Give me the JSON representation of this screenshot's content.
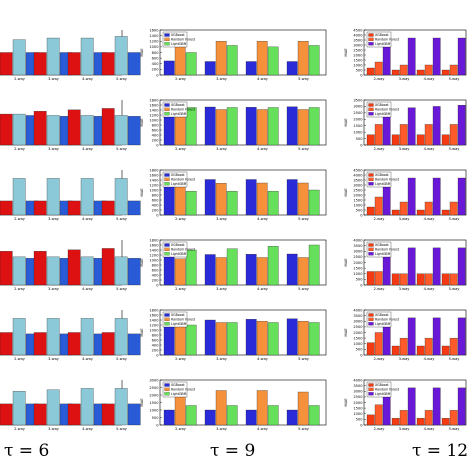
{
  "colors": {
    "a": {
      "red": "#dd1111",
      "lightblue": "#8cc9d8",
      "blue": "#2a5bd7"
    },
    "b": {
      "blue": "#2a2ad8",
      "orange": "#f5913a",
      "green": "#66e05a"
    },
    "c": {
      "red": "#f33a12",
      "purple": "#6a18d8"
    }
  },
  "series_names": {
    "b": [
      "XGBoost",
      "Random Forest",
      "LightGBM"
    ],
    "c": [
      "XGBoost",
      "Random Forest",
      "LightGBM"
    ]
  },
  "categories": [
    "2-way",
    "3-way",
    "4-way",
    "5-way"
  ],
  "ylabel": "MAE",
  "footer": {
    "tau_a": "τ = 6",
    "tau_b": "τ = 9",
    "tau_c": "τ = 12"
  },
  "chart_data": [
    {
      "type": "bar",
      "panel": "A1",
      "categories": [
        "2-way",
        "3-way",
        "4-way",
        "5-way"
      ],
      "ylim": [
        0,
        14
      ],
      "series": [
        {
          "values": [
            7,
            7,
            7,
            7
          ]
        },
        {
          "values": [
            11,
            11.5,
            11.5,
            12
          ]
        },
        {
          "values": [
            7,
            7,
            7,
            7
          ]
        }
      ]
    },
    {
      "type": "bar",
      "panel": "B1",
      "categories": [
        "2-way",
        "3-way",
        "4-way",
        "5-way"
      ],
      "ylim": [
        0,
        1600
      ],
      "yticks": [
        0,
        200,
        400,
        600,
        800,
        1000,
        1200,
        1400,
        1600
      ],
      "series": [
        {
          "name": "XGBoost",
          "values": [
            500,
            480,
            480,
            480
          ]
        },
        {
          "name": "Random Forest",
          "values": [
            1000,
            1200,
            1200,
            1200
          ]
        },
        {
          "name": "LightGBM",
          "values": [
            800,
            1050,
            1000,
            1050
          ]
        }
      ]
    },
    {
      "type": "bar",
      "panel": "C1",
      "categories": [
        "2-way",
        "3-way",
        "4-way",
        "5-way"
      ],
      "ylim": [
        0,
        4500
      ],
      "yticks": [
        0,
        500,
        1000,
        1500,
        2000,
        2500,
        3000,
        3500,
        4000,
        4500
      ],
      "series": [
        {
          "name": "XGBoost",
          "values": [
            700,
            500,
            500,
            500
          ]
        },
        {
          "name": "Random Forest",
          "values": [
            1300,
            1000,
            1000,
            1000
          ]
        },
        {
          "name": "LightGBM",
          "values": [
            3700,
            3700,
            3700,
            3700
          ]
        }
      ]
    },
    {
      "type": "bar",
      "panel": "A2",
      "categories": [
        "2-way",
        "3-way",
        "4-way",
        "5-way"
      ],
      "ylim": [
        0,
        16
      ],
      "series": [
        {
          "values": [
            11,
            12,
            12.5,
            13
          ]
        },
        {
          "values": [
            11,
            10.5,
            10.5,
            10.5
          ]
        },
        {
          "values": [
            10.5,
            10.2,
            10.2,
            10.2
          ]
        }
      ]
    },
    {
      "type": "bar",
      "panel": "B2",
      "categories": [
        "2-way",
        "3-way",
        "4-way",
        "5-way"
      ],
      "ylim": [
        0,
        1800
      ],
      "yticks": [
        0,
        200,
        400,
        600,
        800,
        1000,
        1200,
        1400,
        1600,
        1800
      ],
      "series": [
        {
          "name": "XGBoost",
          "values": [
            1500,
            1520,
            1510,
            1530
          ]
        },
        {
          "name": "Random Forest",
          "values": [
            1420,
            1420,
            1420,
            1420
          ]
        },
        {
          "name": "LightGBM",
          "values": [
            1500,
            1500,
            1500,
            1500
          ]
        }
      ]
    },
    {
      "type": "bar",
      "panel": "C2",
      "categories": [
        "2-way",
        "3-way",
        "4-way",
        "5-way"
      ],
      "ylim": [
        0,
        3500
      ],
      "yticks": [
        0,
        500,
        1000,
        1500,
        2000,
        2500,
        3000,
        3500
      ],
      "series": [
        {
          "name": "XGBoost",
          "values": [
            800,
            800,
            800,
            800
          ]
        },
        {
          "name": "Random Forest",
          "values": [
            1600,
            1600,
            1600,
            1600
          ]
        },
        {
          "name": "LightGBM",
          "values": [
            2800,
            2900,
            3000,
            3100
          ]
        }
      ]
    },
    {
      "type": "bar",
      "panel": "A3",
      "categories": [
        "2-way",
        "3-way",
        "4-way",
        "5-way"
      ],
      "ylim": [
        0,
        16
      ],
      "series": [
        {
          "values": [
            5,
            5,
            5,
            5
          ]
        },
        {
          "values": [
            13,
            13,
            13,
            13
          ]
        },
        {
          "values": [
            5,
            5,
            5,
            5
          ]
        }
      ]
    },
    {
      "type": "bar",
      "panel": "B3",
      "categories": [
        "2-way",
        "3-way",
        "4-way",
        "5-way"
      ],
      "ylim": [
        0,
        1800
      ],
      "yticks": [
        0,
        200,
        400,
        600,
        800,
        1000,
        1200,
        1400,
        1600,
        1800
      ],
      "series": [
        {
          "name": "XGBoost",
          "values": [
            1350,
            1420,
            1420,
            1420
          ]
        },
        {
          "name": "Random Forest",
          "values": [
            1270,
            1270,
            1280,
            1280
          ]
        },
        {
          "name": "LightGBM",
          "values": [
            950,
            950,
            950,
            1000
          ]
        }
      ]
    },
    {
      "type": "bar",
      "panel": "C3",
      "categories": [
        "2-way",
        "3-way",
        "4-way",
        "5-way"
      ],
      "ylim": [
        0,
        4500
      ],
      "yticks": [
        0,
        500,
        1000,
        1500,
        2000,
        2500,
        3000,
        3500,
        4000,
        4500
      ],
      "series": [
        {
          "name": "XGBoost",
          "values": [
            800,
            500,
            500,
            500
          ]
        },
        {
          "name": "Random Forest",
          "values": [
            1800,
            1300,
            1300,
            1300
          ]
        },
        {
          "name": "LightGBM",
          "values": [
            3700,
            3700,
            3700,
            3700
          ]
        }
      ]
    },
    {
      "type": "bar",
      "panel": "A4",
      "categories": [
        "2-way",
        "3-way",
        "4-way",
        "5-way"
      ],
      "ylim": [
        0,
        16
      ],
      "series": [
        {
          "values": [
            12,
            12,
            12.5,
            13
          ]
        },
        {
          "values": [
            10,
            10,
            10,
            10
          ]
        },
        {
          "values": [
            9.5,
            9.5,
            9.5,
            9.5
          ]
        }
      ]
    },
    {
      "type": "bar",
      "panel": "B4",
      "categories": [
        "2-way",
        "3-way",
        "4-way",
        "5-way"
      ],
      "ylim": [
        0,
        1800
      ],
      "yticks": [
        0,
        200,
        400,
        600,
        800,
        1000,
        1200,
        1400,
        1600,
        1800
      ],
      "series": [
        {
          "name": "XGBoost",
          "values": [
            1200,
            1220,
            1230,
            1240
          ]
        },
        {
          "name": "Random Forest",
          "values": [
            1050,
            1100,
            1100,
            1100
          ]
        },
        {
          "name": "LightGBM",
          "values": [
            1400,
            1450,
            1550,
            1600
          ]
        }
      ]
    },
    {
      "type": "bar",
      "panel": "C4",
      "categories": [
        "2-way",
        "3-way",
        "4-way",
        "5-way"
      ],
      "ylim": [
        0,
        4000
      ],
      "yticks": [
        0,
        500,
        1000,
        1500,
        2000,
        2500,
        3000,
        3500,
        4000
      ],
      "series": [
        {
          "name": "XGBoost",
          "values": [
            1200,
            1000,
            1000,
            1000
          ]
        },
        {
          "name": "Random Forest",
          "values": [
            1200,
            1000,
            1000,
            1000
          ]
        },
        {
          "name": "LightGBM",
          "values": [
            2900,
            3300,
            3300,
            3300
          ]
        }
      ]
    },
    {
      "type": "bar",
      "panel": "A5",
      "categories": [
        "2-way",
        "3-way",
        "4-way",
        "5-way"
      ],
      "ylim": [
        0,
        16
      ],
      "series": [
        {
          "values": [
            8,
            8,
            8,
            8
          ]
        },
        {
          "values": [
            13,
            13,
            13,
            13
          ]
        },
        {
          "values": [
            7.5,
            7.5,
            7.5,
            7.5
          ]
        }
      ]
    },
    {
      "type": "bar",
      "panel": "B5",
      "categories": [
        "2-way",
        "3-way",
        "4-way",
        "5-way"
      ],
      "ylim": [
        0,
        1800
      ],
      "yticks": [
        0,
        200,
        400,
        600,
        800,
        1000,
        1200,
        1400,
        1600,
        1800
      ],
      "series": [
        {
          "name": "XGBoost",
          "values": [
            1350,
            1400,
            1430,
            1450
          ]
        },
        {
          "name": "Random Forest",
          "values": [
            1250,
            1300,
            1350,
            1350
          ]
        },
        {
          "name": "LightGBM",
          "values": [
            1200,
            1300,
            1300,
            1300
          ]
        }
      ]
    },
    {
      "type": "bar",
      "panel": "C5",
      "categories": [
        "2-way",
        "3-way",
        "4-way",
        "5-way"
      ],
      "ylim": [
        0,
        4000
      ],
      "yticks": [
        0,
        500,
        1000,
        1500,
        2000,
        2500,
        3000,
        3500,
        4000
      ],
      "series": [
        {
          "name": "XGBoost",
          "values": [
            1100,
            800,
            800,
            800
          ]
        },
        {
          "name": "Random Forest",
          "values": [
            2000,
            1500,
            1500,
            1500
          ]
        },
        {
          "name": "LightGBM",
          "values": [
            3500,
            3300,
            3300,
            3300
          ]
        }
      ]
    },
    {
      "type": "bar",
      "panel": "A6",
      "categories": [
        "2-way",
        "3-way",
        "4-way",
        "5-way"
      ],
      "ylim": [
        0,
        16
      ],
      "series": [
        {
          "values": [
            7.5,
            7.5,
            7.5,
            7.5
          ]
        },
        {
          "values": [
            12,
            12.5,
            13,
            13
          ]
        },
        {
          "values": [
            7.5,
            7.5,
            7.5,
            7.5
          ]
        }
      ]
    },
    {
      "type": "bar",
      "panel": "B6",
      "categories": [
        "2-way",
        "3-way",
        "4-way",
        "5-way"
      ],
      "ylim": [
        0,
        3000
      ],
      "yticks": [
        0,
        500,
        1000,
        1500,
        2000,
        2500,
        3000
      ],
      "series": [
        {
          "name": "XGBoost",
          "values": [
            1000,
            1000,
            1000,
            1000
          ]
        },
        {
          "name": "Random Forest",
          "values": [
            2000,
            2300,
            2300,
            2200
          ]
        },
        {
          "name": "LightGBM",
          "values": [
            1300,
            1300,
            1300,
            1300
          ]
        }
      ]
    },
    {
      "type": "bar",
      "panel": "C6",
      "categories": [
        "2-way",
        "3-way",
        "4-way",
        "5-way"
      ],
      "ylim": [
        0,
        4000
      ],
      "yticks": [
        0,
        500,
        1000,
        1500,
        2000,
        2500,
        3000,
        3500,
        4000
      ],
      "series": [
        {
          "name": "XGBoost",
          "values": [
            900,
            600,
            600,
            600
          ]
        },
        {
          "name": "Random Forest",
          "values": [
            1800,
            1300,
            1300,
            1300
          ]
        },
        {
          "name": "LightGBM",
          "values": [
            3300,
            3300,
            3300,
            3300
          ]
        }
      ]
    }
  ]
}
